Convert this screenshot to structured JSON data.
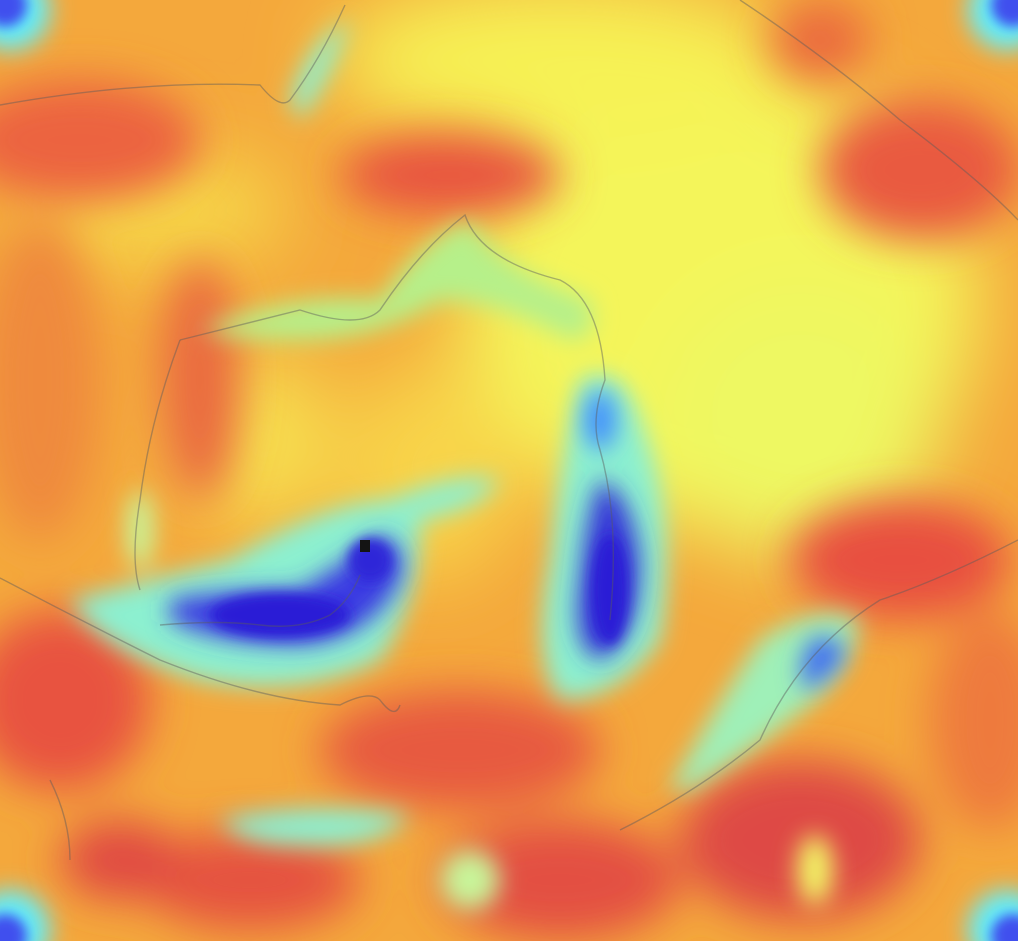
{
  "image": {
    "kind": "heatmap overlay",
    "colormap": "jet",
    "colormap_stops": [
      "#2a1fd6",
      "#3f8cff",
      "#5ff0ff",
      "#c8f59a",
      "#fbf74e",
      "#f6b13c",
      "#f06a3e",
      "#e04b45"
    ],
    "background_color": "#f5a13a",
    "has_contour_lines": true,
    "contour_color": "#5a5a5a"
  }
}
